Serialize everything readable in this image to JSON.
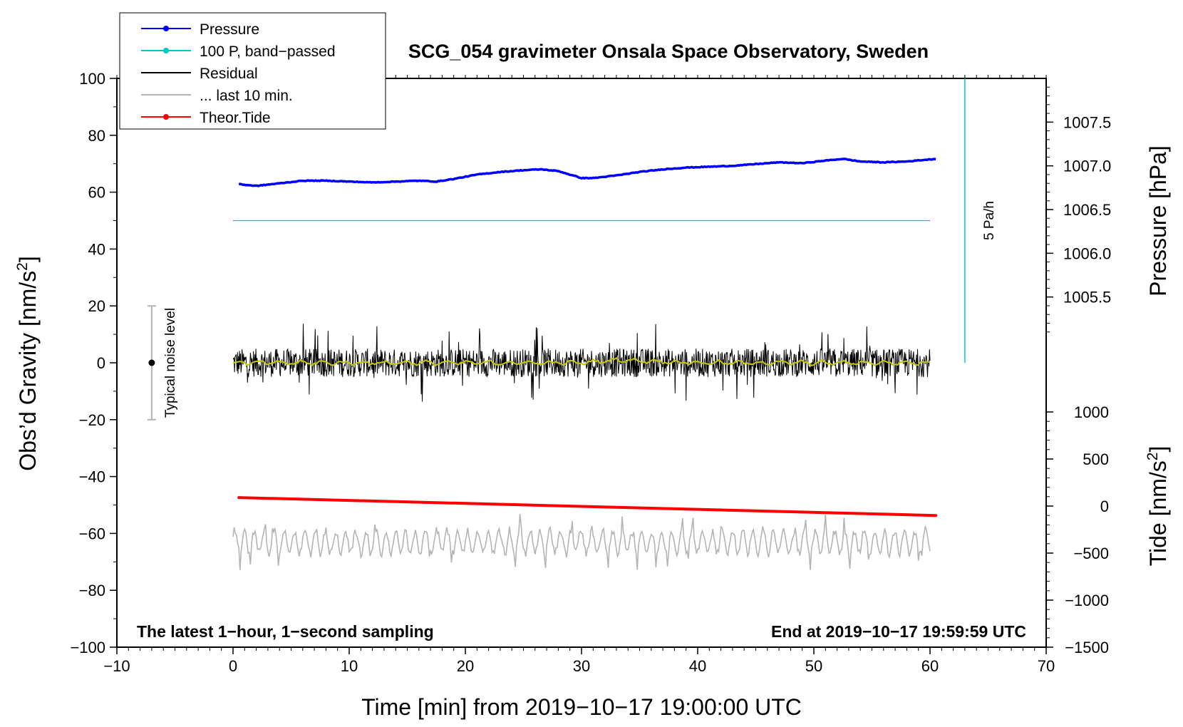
{
  "chart_data": {
    "type": "line",
    "title": "SCG_054 gravimeter Onsala Space Observatory, Sweden",
    "xlabel": "Time [min] from 2019−10−17 19:00:00 UTC",
    "ylabel_left": "Obs’d Gravity [nm/s²]",
    "ylabel_left_parts": {
      "text": "Obs’d Gravity [nm/s",
      "sup": "2",
      "close": "]"
    },
    "ylabel_right_top": "Pressure [hPa]",
    "ylabel_right_bottom": "Tide [nm/s²]",
    "ylabel_right_bottom_parts": {
      "text": "Tide [nm/s",
      "sup": "2",
      "close": "]"
    },
    "xlim": [
      -10,
      70
    ],
    "ylim": [
      -100,
      100
    ],
    "pressure_lim": [
      1005.0,
      1008.0
    ],
    "tide_lim": [
      -1500,
      1000
    ],
    "x_ticks": [
      -10,
      0,
      10,
      20,
      30,
      40,
      50,
      60,
      70
    ],
    "x_tick_labels": [
      "−10",
      "0",
      "10",
      "20",
      "30",
      "40",
      "50",
      "60",
      "70"
    ],
    "y_ticks": [
      -100,
      -80,
      -60,
      -40,
      -20,
      0,
      20,
      40,
      60,
      80,
      100
    ],
    "y_tick_labels": [
      "−100",
      "−80",
      "−60",
      "−40",
      "−20",
      "0",
      "20",
      "40",
      "60",
      "80",
      "100"
    ],
    "pressure_ticks": [
      1005.5,
      1006.0,
      1006.5,
      1007.0,
      1007.5
    ],
    "pressure_tick_labels": [
      "1005.5",
      "1006.0",
      "1006.5",
      "1007.0",
      "1007.5"
    ],
    "tide_ticks": [
      -1500,
      -1000,
      -500,
      0,
      500,
      1000
    ],
    "tide_tick_labels": [
      "−1500",
      "−1000",
      "−500",
      "0",
      "500",
      "1000"
    ],
    "legend": {
      "position": "top-left",
      "entries": [
        {
          "label": "Pressure",
          "color": "#0000ff",
          "marker": true
        },
        {
          "label": "100 P, band−passed",
          "color": "#00c8c8",
          "marker": true
        },
        {
          "label": "Residual",
          "color": "#000000",
          "marker": false
        },
        {
          "label": "... last 10 min.",
          "color": "#b4b4b4",
          "marker": false
        },
        {
          "label": "Theor.Tide",
          "color": "#ff0000",
          "marker": true
        }
      ]
    },
    "series": [
      {
        "name": "Pressure",
        "axis": "pressure",
        "color": "#0000ff",
        "x": [
          0.5,
          2,
          4,
          6,
          8,
          10,
          12,
          14,
          16,
          17.5,
          19,
          21,
          23,
          25,
          26.5,
          28,
          29,
          30,
          31,
          33,
          35,
          37,
          39,
          41,
          43,
          45,
          47,
          49,
          51,
          52.5,
          54,
          56,
          58,
          60.5
        ],
        "values": [
          1006.79,
          1006.77,
          1006.8,
          1006.83,
          1006.83,
          1006.82,
          1006.81,
          1006.82,
          1006.83,
          1006.82,
          1006.85,
          1006.9,
          1006.93,
          1006.95,
          1006.96,
          1006.94,
          1006.9,
          1006.86,
          1006.86,
          1006.89,
          1006.93,
          1006.96,
          1006.98,
          1006.99,
          1007.0,
          1007.02,
          1007.04,
          1007.03,
          1007.06,
          1007.08,
          1007.05,
          1007.04,
          1007.05,
          1007.08
        ]
      },
      {
        "name": "100 P, band−passed",
        "axis": "left",
        "color": "#00c8c8",
        "x": [
          0,
          60
        ],
        "values": [
          50,
          50
        ]
      },
      {
        "name": "Residual",
        "axis": "left",
        "color": "#000000",
        "x_range": [
          0,
          60
        ],
        "mean": 0,
        "typical_amplitude": 5,
        "peak_amplitude": 14
      },
      {
        "name": "Residual (smoothed)",
        "axis": "left",
        "color": "#c8c800",
        "x": [
          0,
          10,
          20,
          30,
          33,
          40,
          50,
          60
        ],
        "values": [
          0,
          0,
          0,
          0,
          1,
          0,
          0,
          0
        ]
      },
      {
        "name": "Theor.Tide",
        "axis": "tide",
        "color": "#ff0000",
        "x": [
          0.5,
          60.5
        ],
        "values": [
          90,
          -100
        ]
      },
      {
        "name": "... last 10 min.",
        "axis": "left",
        "color": "#b4b4b4",
        "x_range": [
          0,
          60
        ],
        "mean": -63,
        "typical_amplitude": 4,
        "peak_amplitude": 10
      }
    ],
    "pressure_rate_bar": {
      "x": 63,
      "y_range": [
        0,
        100
      ],
      "label": "5 Pa/h",
      "color": "#00c8c8"
    },
    "noise_bar": {
      "x": -7,
      "center": 0,
      "range": [
        -20,
        20
      ],
      "label": "Typical noise level"
    },
    "annotations": {
      "bottom_left": "The latest 1−hour, 1−second sampling",
      "bottom_right": "End at 2019−10−17 19:59:59 UTC"
    },
    "grid": false
  }
}
